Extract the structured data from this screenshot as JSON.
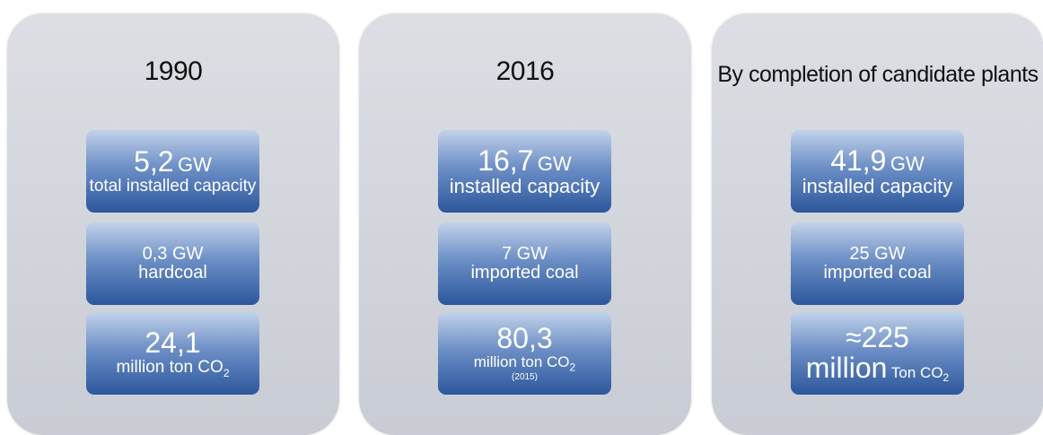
{
  "panels": [
    {
      "title": "1990",
      "boxes": [
        {
          "value": "5,2",
          "unit": "GW",
          "label": "total installed capacity"
        },
        {
          "value": "0,3 GW",
          "label": "hardcoal"
        },
        {
          "value": "24,1",
          "label": "million ton CO",
          "sub": "2"
        }
      ]
    },
    {
      "title": "2016",
      "boxes": [
        {
          "value": "16,7",
          "unit": "GW",
          "label": "installed capacity"
        },
        {
          "value": "7 GW",
          "label": "imported coal"
        },
        {
          "value": "80,3",
          "label": "million ton CO",
          "sub": "2",
          "note": "(2015)"
        }
      ]
    },
    {
      "title": "By completion of candidate plants",
      "boxes": [
        {
          "value": "41,9",
          "unit": "GW",
          "label": "installed capacity"
        },
        {
          "value": "25 GW",
          "label": "imported coal"
        },
        {
          "value": "≈225",
          "label": "million",
          "label2": "Ton CO",
          "sub": "2"
        }
      ]
    }
  ]
}
